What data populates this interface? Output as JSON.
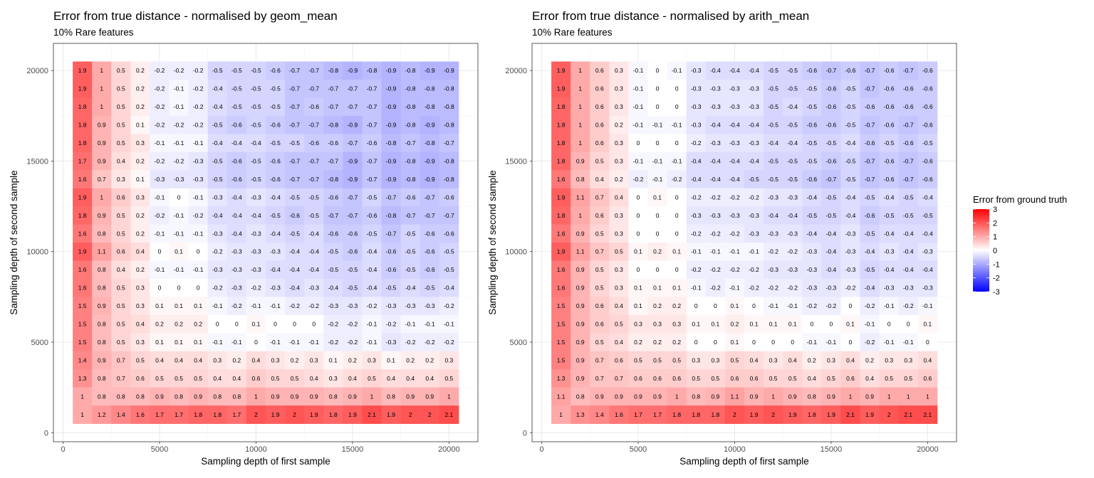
{
  "chart_data": [
    {
      "type": "heatmap",
      "title": "Error from true distance - normalised by geom_mean",
      "subtitle": "10% Rare features",
      "xlabel": "Sampling depth of first sample",
      "ylabel": "Sampling depth of second sample",
      "x": [
        1000,
        2000,
        3000,
        4000,
        5000,
        6000,
        7000,
        8000,
        9000,
        10000,
        11000,
        12000,
        13000,
        14000,
        15000,
        16000,
        17000,
        18000,
        19000,
        20000
      ],
      "y": [
        1000,
        2000,
        3000,
        4000,
        5000,
        6000,
        7000,
        8000,
        9000,
        10000,
        11000,
        12000,
        13000,
        14000,
        15000,
        16000,
        17000,
        18000,
        19000,
        20000
      ],
      "xlim": [
        -500,
        21500
      ],
      "ylim": [
        -500,
        21500
      ],
      "xticks": [
        0,
        5000,
        10000,
        15000,
        20000
      ],
      "yticks": [
        0,
        5000,
        10000,
        15000,
        20000
      ],
      "grid": true,
      "rows_top_to_bottom": [
        [
          "1.9",
          "1",
          "0.5",
          "0.2",
          "-0.2",
          "-0.2",
          "-0.2",
          "-0.5",
          "-0.5",
          "-0.5",
          "-0.6",
          "-0.7",
          "-0.7",
          "-0.8",
          "-0.9",
          "-0.8",
          "-0.9",
          "-0.8",
          "-0.9",
          "-0.9"
        ],
        [
          "1.9",
          "1",
          "0.5",
          "0.2",
          "-0.2",
          "-0.1",
          "-0.2",
          "-0.4",
          "-0.5",
          "-0.5",
          "-0.5",
          "-0.7",
          "-0.7",
          "-0.7",
          "-0.7",
          "-0.7",
          "-0.9",
          "-0.8",
          "-0.8",
          "-0.8"
        ],
        [
          "1.8",
          "1",
          "0.5",
          "0.2",
          "-0.2",
          "-0.1",
          "-0.2",
          "-0.4",
          "-0.5",
          "-0.5",
          "-0.5",
          "-0.7",
          "-0.6",
          "-0.7",
          "-0.7",
          "-0.7",
          "-0.9",
          "-0.8",
          "-0.8",
          "-0.8"
        ],
        [
          "1.8",
          "0.9",
          "0.5",
          "0.1",
          "-0.2",
          "-0.2",
          "-0.2",
          "-0.5",
          "-0.6",
          "-0.5",
          "-0.6",
          "-0.7",
          "-0.7",
          "-0.8",
          "-0.9",
          "-0.7",
          "-0.9",
          "-0.8",
          "-0.9",
          "-0.8"
        ],
        [
          "1.8",
          "0.9",
          "0.5",
          "0.3",
          "-0.1",
          "-0.1",
          "-0.1",
          "-0.4",
          "-0.4",
          "-0.4",
          "-0.5",
          "-0.5",
          "-0.6",
          "-0.6",
          "-0.7",
          "-0.6",
          "-0.8",
          "-0.7",
          "-0.8",
          "-0.7"
        ],
        [
          "1.7",
          "0.9",
          "0.4",
          "0.2",
          "-0.2",
          "-0.2",
          "-0.3",
          "-0.5",
          "-0.6",
          "-0.5",
          "-0.6",
          "-0.7",
          "-0.7",
          "-0.7",
          "-0.9",
          "-0.7",
          "-0.9",
          "-0.8",
          "-0.9",
          "-0.8"
        ],
        [
          "1.6",
          "0.7",
          "0.3",
          "0.1",
          "-0.3",
          "-0.3",
          "-0.3",
          "-0.5",
          "-0.6",
          "-0.5",
          "-0.6",
          "-0.7",
          "-0.7",
          "-0.8",
          "-0.9",
          "-0.7",
          "-0.9",
          "-0.8",
          "-0.9",
          "-0.8"
        ],
        [
          "1.9",
          "1",
          "0.6",
          "0.3",
          "-0.1",
          "0",
          "-0.1",
          "-0.3",
          "-0.4",
          "-0.3",
          "-0.4",
          "-0.5",
          "-0.5",
          "-0.6",
          "-0.7",
          "-0.5",
          "-0.7",
          "-0.6",
          "-0.7",
          "-0.6"
        ],
        [
          "1.8",
          "0.9",
          "0.5",
          "0.2",
          "-0.2",
          "-0.1",
          "-0.2",
          "-0.4",
          "-0.4",
          "-0.4",
          "-0.5",
          "-0.6",
          "-0.5",
          "-0.7",
          "-0.7",
          "-0.6",
          "-0.8",
          "-0.7",
          "-0.7",
          "-0.7"
        ],
        [
          "1.6",
          "0.8",
          "0.5",
          "0.2",
          "-0.1",
          "-0.1",
          "-0.1",
          "-0.3",
          "-0.4",
          "-0.3",
          "-0.4",
          "-0.5",
          "-0.4",
          "-0.6",
          "-0.6",
          "-0.5",
          "-0.7",
          "-0.5",
          "-0.6",
          "-0.6"
        ],
        [
          "1.9",
          "1.1",
          "0.6",
          "0.4",
          "0",
          "0.1",
          "0",
          "-0.2",
          "-0.3",
          "-0.3",
          "-0.3",
          "-0.4",
          "-0.4",
          "-0.5",
          "-0.6",
          "-0.4",
          "-0.6",
          "-0.5",
          "-0.6",
          "-0.5"
        ],
        [
          "1.6",
          "0.8",
          "0.4",
          "0.2",
          "-0.1",
          "-0.1",
          "-0.1",
          "-0.3",
          "-0.3",
          "-0.3",
          "-0.4",
          "-0.4",
          "-0.4",
          "-0.5",
          "-0.5",
          "-0.4",
          "-0.6",
          "-0.5",
          "-0.6",
          "-0.5"
        ],
        [
          "1.6",
          "0.8",
          "0.5",
          "0.3",
          "0",
          "0",
          "0",
          "-0.2",
          "-0.3",
          "-0.2",
          "-0.3",
          "-0.4",
          "-0.3",
          "-0.4",
          "-0.5",
          "-0.4",
          "-0.5",
          "-0.4",
          "-0.5",
          "-0.4"
        ],
        [
          "1.5",
          "0.9",
          "0.5",
          "0.3",
          "0.1",
          "0.1",
          "0.1",
          "-0.1",
          "-0.2",
          "-0.1",
          "-0.1",
          "-0.2",
          "-0.2",
          "-0.3",
          "-0.3",
          "-0.2",
          "-0.3",
          "-0.3",
          "-0.3",
          "-0.2"
        ],
        [
          "1.5",
          "0.8",
          "0.5",
          "0.4",
          "0.2",
          "0.2",
          "0.2",
          "0",
          "0",
          "0.1",
          "0",
          "0",
          "0",
          "-0.2",
          "-0.2",
          "-0.1",
          "-0.2",
          "-0.1",
          "-0.1",
          "-0.1"
        ],
        [
          "1.5",
          "0.8",
          "0.5",
          "0.3",
          "0.1",
          "0.1",
          "0.1",
          "-0.1",
          "-0.1",
          "0",
          "-0.1",
          "-0.1",
          "-0.1",
          "-0.2",
          "-0.2",
          "-0.1",
          "-0.3",
          "-0.2",
          "-0.2",
          "-0.2"
        ],
        [
          "1.4",
          "0.9",
          "0.7",
          "0.5",
          "0.4",
          "0.4",
          "0.4",
          "0.3",
          "0.2",
          "0.4",
          "0.3",
          "0.2",
          "0.3",
          "0.1",
          "0.2",
          "0.3",
          "0.1",
          "0.2",
          "0.2",
          "0.3"
        ],
        [
          "1.3",
          "0.8",
          "0.7",
          "0.6",
          "0.5",
          "0.5",
          "0.5",
          "0.4",
          "0.4",
          "0.6",
          "0.5",
          "0.5",
          "0.4",
          "0.3",
          "0.4",
          "0.5",
          "0.4",
          "0.4",
          "0.4",
          "0.5"
        ],
        [
          "1",
          "0.8",
          "0.8",
          "0.8",
          "0.9",
          "0.8",
          "0.9",
          "0.8",
          "0.8",
          "1",
          "0.9",
          "0.9",
          "0.9",
          "0.8",
          "0.9",
          "1",
          "0.8",
          "0.9",
          "0.9",
          "1"
        ],
        [
          "1",
          "1.2",
          "1.4",
          "1.6",
          "1.7",
          "1.7",
          "1.8",
          "1.8",
          "1.7",
          "2",
          "1.9",
          "2",
          "1.9",
          "1.8",
          "1.9",
          "2.1",
          "1.9",
          "2",
          "2",
          "2.1"
        ]
      ]
    },
    {
      "type": "heatmap",
      "title": "Error from true distance - normalised by arith_mean",
      "subtitle": "10% Rare features",
      "xlabel": "Sampling depth of first sample",
      "ylabel": "Sampling depth of second sample",
      "x": [
        1000,
        2000,
        3000,
        4000,
        5000,
        6000,
        7000,
        8000,
        9000,
        10000,
        11000,
        12000,
        13000,
        14000,
        15000,
        16000,
        17000,
        18000,
        19000,
        20000
      ],
      "y": [
        1000,
        2000,
        3000,
        4000,
        5000,
        6000,
        7000,
        8000,
        9000,
        10000,
        11000,
        12000,
        13000,
        14000,
        15000,
        16000,
        17000,
        18000,
        19000,
        20000
      ],
      "xlim": [
        -500,
        21500
      ],
      "ylim": [
        -500,
        21500
      ],
      "xticks": [
        0,
        5000,
        10000,
        15000,
        20000
      ],
      "yticks": [
        0,
        5000,
        10000,
        15000,
        20000
      ],
      "grid": true,
      "rows_top_to_bottom": [
        [
          "1.9",
          "1",
          "0.6",
          "0.3",
          "-0.1",
          "0",
          "-0.1",
          "-0.3",
          "-0.4",
          "-0.4",
          "-0.4",
          "-0.5",
          "-0.5",
          "-0.6",
          "-0.7",
          "-0.6",
          "-0.7",
          "-0.6",
          "-0.7",
          "-0.6"
        ],
        [
          "1.9",
          "1",
          "0.6",
          "0.3",
          "-0.1",
          "0",
          "0",
          "-0.3",
          "-0.3",
          "-0.3",
          "-0.3",
          "-0.5",
          "-0.5",
          "-0.5",
          "-0.6",
          "-0.5",
          "-0.7",
          "-0.6",
          "-0.6",
          "-0.6"
        ],
        [
          "1.8",
          "1",
          "0.6",
          "0.3",
          "-0.1",
          "0",
          "0",
          "-0.3",
          "-0.3",
          "-0.3",
          "-0.3",
          "-0.5",
          "-0.4",
          "-0.5",
          "-0.6",
          "-0.5",
          "-0.6",
          "-0.6",
          "-0.6",
          "-0.6"
        ],
        [
          "1.8",
          "1",
          "0.6",
          "0.2",
          "-0.1",
          "-0.1",
          "-0.1",
          "-0.3",
          "-0.4",
          "-0.4",
          "-0.4",
          "-0.5",
          "-0.5",
          "-0.6",
          "-0.6",
          "-0.5",
          "-0.7",
          "-0.6",
          "-0.7",
          "-0.6"
        ],
        [
          "1.8",
          "1",
          "0.6",
          "0.3",
          "0",
          "0",
          "0",
          "-0.2",
          "-0.3",
          "-0.3",
          "-0.3",
          "-0.4",
          "-0.4",
          "-0.5",
          "-0.5",
          "-0.4",
          "-0.6",
          "-0.5",
          "-0.6",
          "-0.5"
        ],
        [
          "1.8",
          "0.9",
          "0.5",
          "0.3",
          "-0.1",
          "-0.1",
          "-0.1",
          "-0.4",
          "-0.4",
          "-0.4",
          "-0.4",
          "-0.5",
          "-0.5",
          "-0.5",
          "-0.6",
          "-0.5",
          "-0.7",
          "-0.6",
          "-0.7",
          "-0.6"
        ],
        [
          "1.6",
          "0.8",
          "0.4",
          "0.2",
          "-0.2",
          "-0.1",
          "-0.2",
          "-0.4",
          "-0.4",
          "-0.4",
          "-0.5",
          "-0.5",
          "-0.5",
          "-0.6",
          "-0.7",
          "-0.5",
          "-0.7",
          "-0.6",
          "-0.7",
          "-0.6"
        ],
        [
          "1.9",
          "1.1",
          "0.7",
          "0.4",
          "0",
          "0.1",
          "0",
          "-0.2",
          "-0.2",
          "-0.2",
          "-0.2",
          "-0.3",
          "-0.3",
          "-0.4",
          "-0.5",
          "-0.4",
          "-0.5",
          "-0.4",
          "-0.5",
          "-0.4"
        ],
        [
          "1.8",
          "1",
          "0.6",
          "0.3",
          "0",
          "0",
          "0",
          "-0.3",
          "-0.3",
          "-0.3",
          "-0.3",
          "-0.4",
          "-0.4",
          "-0.5",
          "-0.5",
          "-0.4",
          "-0.6",
          "-0.5",
          "-0.5",
          "-0.5"
        ],
        [
          "1.6",
          "0.9",
          "0.5",
          "0.3",
          "0",
          "0",
          "0",
          "-0.2",
          "-0.2",
          "-0.2",
          "-0.3",
          "-0.3",
          "-0.3",
          "-0.4",
          "-0.4",
          "-0.3",
          "-0.5",
          "-0.4",
          "-0.4",
          "-0.4"
        ],
        [
          "1.9",
          "1.1",
          "0.7",
          "0.5",
          "0.1",
          "0.2",
          "0.1",
          "-0.1",
          "-0.1",
          "-0.1",
          "-0.1",
          "-0.2",
          "-0.2",
          "-0.3",
          "-0.4",
          "-0.3",
          "-0.4",
          "-0.3",
          "-0.4",
          "-0.3"
        ],
        [
          "1.6",
          "0.9",
          "0.5",
          "0.3",
          "0",
          "0",
          "0",
          "-0.2",
          "-0.2",
          "-0.2",
          "-0.2",
          "-0.3",
          "-0.3",
          "-0.3",
          "-0.4",
          "-0.3",
          "-0.5",
          "-0.4",
          "-0.4",
          "-0.4"
        ],
        [
          "1.6",
          "0.9",
          "0.5",
          "0.3",
          "0.1",
          "0.1",
          "0.1",
          "-0.1",
          "-0.2",
          "-0.1",
          "-0.2",
          "-0.2",
          "-0.2",
          "-0.3",
          "-0.3",
          "-0.2",
          "-0.4",
          "-0.3",
          "-0.3",
          "-0.3"
        ],
        [
          "1.5",
          "0.9",
          "0.6",
          "0.4",
          "0.1",
          "0.2",
          "0.2",
          "0",
          "0",
          "0.1",
          "0",
          "-0.1",
          "-0.1",
          "-0.2",
          "-0.2",
          "0",
          "-0.2",
          "-0.1",
          "-0.2",
          "-0.1"
        ],
        [
          "1.5",
          "0.9",
          "0.6",
          "0.5",
          "0.3",
          "0.3",
          "0.3",
          "0.1",
          "0.1",
          "0.2",
          "0.1",
          "0.1",
          "0.1",
          "0",
          "0",
          "0.1",
          "-0.1",
          "0",
          "0",
          "0.1"
        ],
        [
          "1.5",
          "0.9",
          "0.5",
          "0.4",
          "0.2",
          "0.2",
          "0.2",
          "0",
          "0",
          "0.1",
          "0",
          "0",
          "0",
          "-0.1",
          "-0.1",
          "0",
          "-0.2",
          "-0.1",
          "-0.1",
          "0"
        ],
        [
          "1.5",
          "0.9",
          "0.7",
          "0.6",
          "0.5",
          "0.5",
          "0.5",
          "0.3",
          "0.3",
          "0.5",
          "0.4",
          "0.3",
          "0.4",
          "0.2",
          "0.3",
          "0.4",
          "0.2",
          "0.3",
          "0.3",
          "0.4"
        ],
        [
          "1.3",
          "0.9",
          "0.7",
          "0.7",
          "0.6",
          "0.6",
          "0.6",
          "0.5",
          "0.5",
          "0.6",
          "0.6",
          "0.5",
          "0.5",
          "0.4",
          "0.5",
          "0.6",
          "0.4",
          "0.5",
          "0.5",
          "0.6"
        ],
        [
          "1.1",
          "0.8",
          "0.9",
          "0.9",
          "0.9",
          "0.9",
          "1",
          "0.8",
          "0.9",
          "1.1",
          "0.9",
          "1",
          "0.9",
          "0.8",
          "0.9",
          "1",
          "0.9",
          "1",
          "1",
          "1"
        ],
        [
          "1",
          "1.3",
          "1.4",
          "1.6",
          "1.7",
          "1.7",
          "1.8",
          "1.8",
          "1.8",
          "2",
          "1.9",
          "2",
          "1.9",
          "1.8",
          "1.9",
          "2.1",
          "1.9",
          "2",
          "2.1",
          "2.1"
        ]
      ]
    }
  ],
  "legend": {
    "title": "Error from ground truth",
    "position": "right",
    "range": [
      -3,
      3
    ],
    "ticks": [
      3,
      2,
      1,
      0,
      -1,
      -2,
      -3
    ],
    "colors": {
      "low": "#0000ff",
      "mid": "#ffffff",
      "high": "#ff0000"
    }
  },
  "colors": {
    "panel_border": "#333333",
    "grid_major": "#ebebeb",
    "grid_minor": "#f4f4f4"
  }
}
